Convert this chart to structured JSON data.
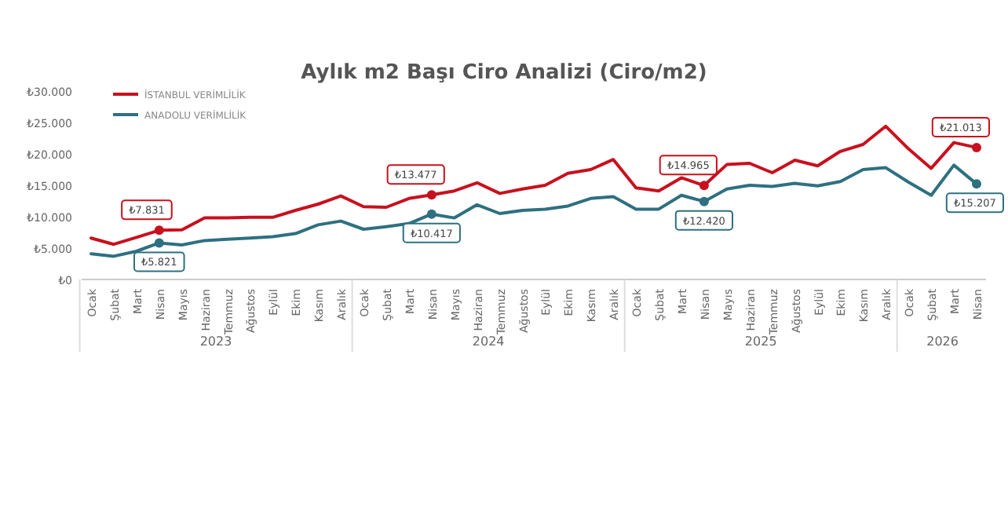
{
  "chart_data": {
    "type": "line",
    "title": "Aylık m2 Başı Ciro Analizi (Ciro/m2)",
    "categories": [
      "Ocak",
      "Şubat",
      "Mart",
      "Nisan",
      "Mayıs",
      "Haziran",
      "Temmuz",
      "Ağustos",
      "Eylül",
      "Ekim",
      "Kasım",
      "Aralık",
      "Ocak",
      "Şubat",
      "Mart",
      "Nisan",
      "Mayıs",
      "Haziran",
      "Temmuz",
      "Ağustos",
      "Eylül",
      "Ekim",
      "Kasım",
      "Aralık",
      "Ocak",
      "Şubat",
      "Mart",
      "Nisan",
      "Mayıs",
      "Haziran",
      "Temmuz",
      "Ağustos",
      "Eylül",
      "Ekim",
      "Kasım",
      "Aralık",
      "Ocak",
      "Şubat",
      "Mart",
      "Nisan"
    ],
    "series": [
      {
        "name": "İSTANBUL VERİMLİLİK",
        "color": "#c8101e",
        "values": [
          6600,
          5600,
          6700,
          7831,
          7900,
          9800,
          9800,
          9900,
          9900,
          11000,
          12000,
          13300,
          11600,
          11500,
          12900,
          13477,
          14100,
          15400,
          13700,
          14400,
          15000,
          16900,
          17500,
          19100,
          14600,
          14100,
          16200,
          14965,
          18300,
          18500,
          17000,
          19000,
          18100,
          20400,
          21500,
          24400,
          20800,
          17700,
          21800,
          21013
        ],
        "value_labels": [
          null,
          null,
          null,
          "₺7.831",
          null,
          null,
          null,
          null,
          null,
          null,
          null,
          null,
          null,
          null,
          null,
          "₺13.477",
          null,
          null,
          null,
          null,
          null,
          null,
          null,
          null,
          null,
          null,
          null,
          "₺14.965",
          null,
          null,
          null,
          null,
          null,
          null,
          null,
          null,
          null,
          null,
          null,
          "₺21.013"
        ]
      },
      {
        "name": "ANADOLU VERİMLİLİK",
        "color": "#2e7080",
        "values": [
          4100,
          3700,
          4500,
          5821,
          5500,
          6200,
          6400,
          6600,
          6800,
          7300,
          8700,
          9300,
          8000,
          8400,
          8900,
          10417,
          9800,
          11900,
          10500,
          11000,
          11200,
          11700,
          12900,
          13200,
          11200,
          11200,
          13400,
          12420,
          14400,
          15000,
          14800,
          15300,
          14900,
          15600,
          17500,
          17800,
          15500,
          13400,
          18200,
          15207
        ],
        "value_labels": [
          null,
          null,
          null,
          "₺5.821",
          null,
          null,
          null,
          null,
          null,
          null,
          null,
          null,
          null,
          null,
          null,
          "₺10.417",
          null,
          null,
          null,
          null,
          null,
          null,
          null,
          null,
          null,
          null,
          null,
          "₺12.420",
          null,
          null,
          null,
          null,
          null,
          null,
          null,
          null,
          null,
          null,
          null,
          "₺15.207"
        ]
      }
    ],
    "ylim": [
      0,
      30000
    ],
    "yticks": [
      {
        "value": 0,
        "label": "₺0"
      },
      {
        "value": 5000,
        "label": "₺5.000"
      },
      {
        "value": 10000,
        "label": "₺10.000"
      },
      {
        "value": 15000,
        "label": "₺15.000"
      },
      {
        "value": 20000,
        "label": "₺20.000"
      },
      {
        "value": 25000,
        "label": "₺25.000"
      },
      {
        "value": 30000,
        "label": "₺30.000"
      }
    ],
    "legend": "top left",
    "annotations": [
      "2023",
      "2024",
      "2025",
      "2026"
    ]
  }
}
